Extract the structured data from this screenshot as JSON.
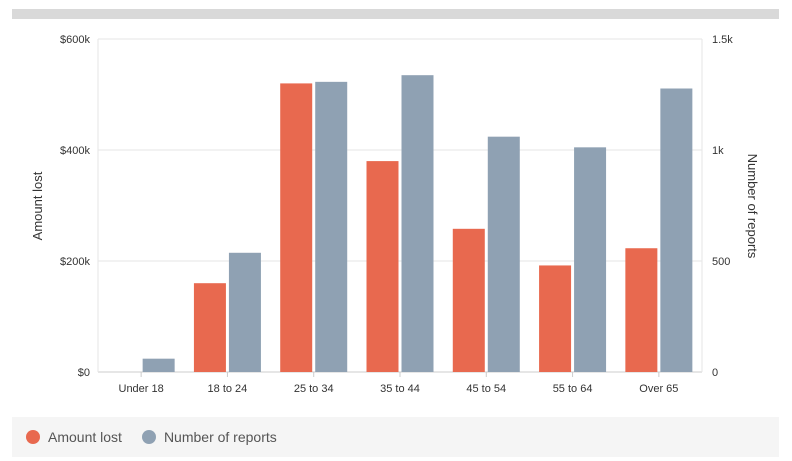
{
  "chart_data": {
    "type": "bar",
    "categories": [
      "Under 18",
      "18 to 24",
      "25 to 34",
      "35 to 44",
      "45 to 54",
      "55 to 64",
      "Over 65"
    ],
    "series": [
      {
        "name": "Amount lost",
        "axis": "left",
        "color": "#e8694f",
        "values": [
          0,
          160000,
          520000,
          380000,
          258000,
          192000,
          223000
        ]
      },
      {
        "name": "Number of reports",
        "axis": "right",
        "color": "#8fa1b3",
        "values": [
          60,
          537,
          1307,
          1337,
          1060,
          1012,
          1277
        ]
      }
    ],
    "y_left": {
      "label": "Amount lost",
      "min": 0,
      "max": 600000,
      "ticks": [
        0,
        200000,
        400000,
        600000
      ],
      "tick_labels": [
        "$0",
        "$200k",
        "$400k",
        "$600k"
      ]
    },
    "y_right": {
      "label": "Number of reports",
      "min": 0,
      "max": 1500,
      "ticks": [
        0,
        500,
        1000,
        1500
      ],
      "tick_labels": [
        "0",
        "500",
        "1k",
        "1.5k"
      ]
    },
    "grid": true,
    "legend": {
      "position": "bottom-left"
    }
  }
}
